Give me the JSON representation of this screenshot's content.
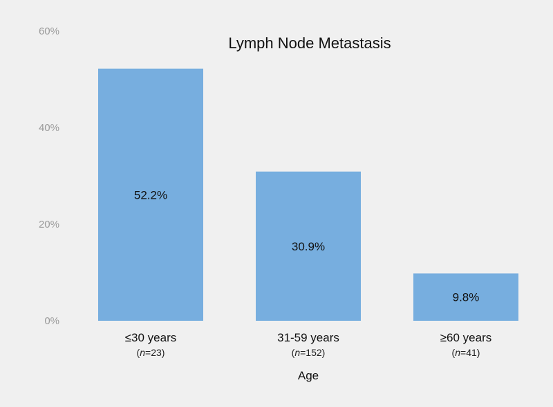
{
  "chart_data": {
    "type": "bar",
    "title": "Lymph Node Metastasis",
    "xlabel": "Age",
    "ylabel": "",
    "ylim": [
      0,
      60
    ],
    "yticks": [
      "0%",
      "20%",
      "40%",
      "60%"
    ],
    "ytick_values": [
      0,
      20,
      40,
      60
    ],
    "grid": false,
    "categories": [
      "≤30 years",
      "31-59 years",
      "≥60 years"
    ],
    "category_n": [
      "23",
      "152",
      "41"
    ],
    "values": [
      52.2,
      30.9,
      9.8
    ],
    "data_labels": [
      "52.2%",
      "30.9%",
      "9.8%"
    ],
    "bar_color": "#77aedf",
    "background_color": "#f0f0f0"
  }
}
